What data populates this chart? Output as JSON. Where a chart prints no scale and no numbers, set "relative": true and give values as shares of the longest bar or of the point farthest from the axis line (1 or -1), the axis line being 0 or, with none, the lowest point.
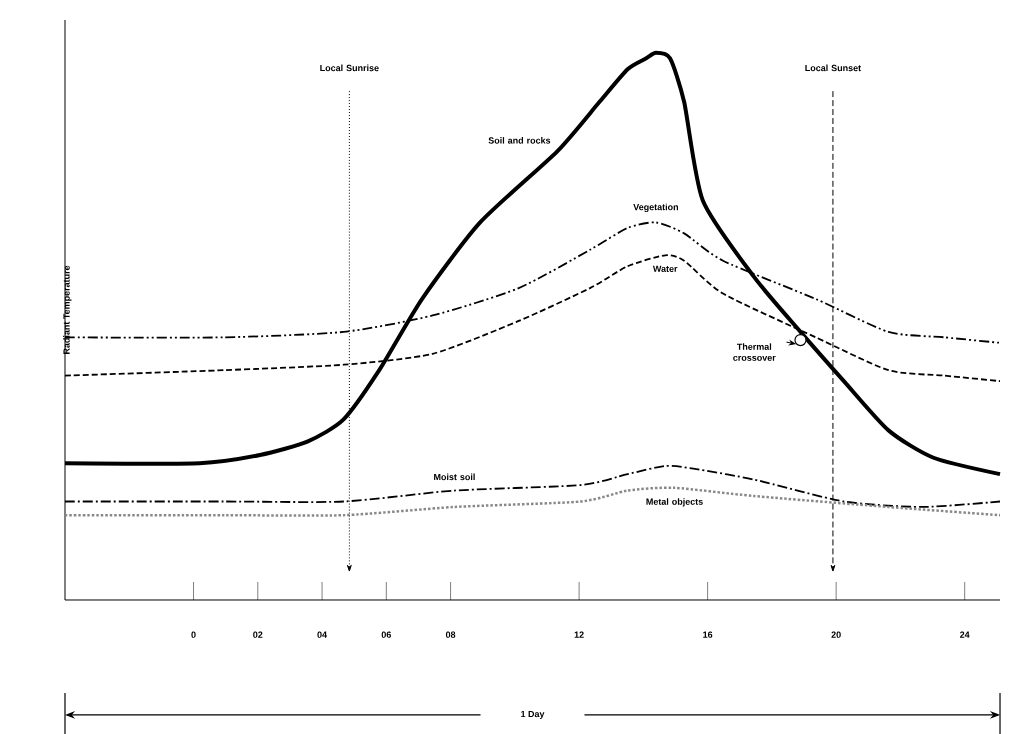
{
  "chart_data": {
    "type": "line",
    "relative": true,
    "ylabel": "Radiant Temperature",
    "xlim": [
      -4,
      25.1
    ],
    "xticks": [
      {
        "value": 0,
        "label": "0"
      },
      {
        "value": 2,
        "label": "02"
      },
      {
        "value": 4,
        "label": "04"
      },
      {
        "value": 6,
        "label": "06"
      },
      {
        "value": 8,
        "label": "08"
      },
      {
        "value": 12,
        "label": "12"
      },
      {
        "value": 16,
        "label": "16"
      },
      {
        "value": 20,
        "label": "20"
      },
      {
        "value": 24,
        "label": "24"
      }
    ],
    "grid": false,
    "series": [
      {
        "name": "Soil and rocks",
        "color": "#000000",
        "line_style": "solid",
        "x": [
          -4,
          0.19,
          2.07,
          3.56,
          4.67,
          5.78,
          7.11,
          8.92,
          11.32,
          12.63,
          13.51,
          14.09,
          14.39,
          14.83,
          15.27,
          15.85,
          17.45,
          18.89,
          20.24,
          21.63,
          23.03,
          25.1
        ],
        "values": [
          0.25,
          0.25,
          0.265,
          0.29,
          0.33,
          0.42,
          0.55,
          0.69,
          0.82,
          0.91,
          0.97,
          0.99,
          1.0,
          0.99,
          0.91,
          0.73,
          0.59,
          0.49,
          0.4,
          0.31,
          0.26,
          0.23
        ]
      },
      {
        "name": "Vegetation",
        "color": "#000000",
        "line_style": "dashdotdot",
        "x": [
          -4,
          0.94,
          4.67,
          7.44,
          10.12,
          12.34,
          13.51,
          14.39,
          15.27,
          16.48,
          19.37,
          21.63,
          23.37,
          25.1
        ],
        "values": [
          0.48,
          0.48,
          0.49,
          0.52,
          0.57,
          0.64,
          0.68,
          0.69,
          0.67,
          0.62,
          0.55,
          0.49,
          0.48,
          0.47
        ]
      },
      {
        "name": "Water",
        "color": "#000000",
        "line_style": "dashed",
        "x": [
          -4,
          0.94,
          4.67,
          7.44,
          10.12,
          12.34,
          13.51,
          14.68,
          15.27,
          16.48,
          19.37,
          21.63,
          23.37,
          25.1
        ],
        "values": [
          0.41,
          0.42,
          0.43,
          0.45,
          0.51,
          0.57,
          0.61,
          0.63,
          0.62,
          0.56,
          0.48,
          0.42,
          0.41,
          0.4
        ]
      },
      {
        "name": "Moist soil",
        "color": "#000000",
        "line_style": "dashdot",
        "x": [
          -4,
          0.94,
          4.67,
          8.12,
          12.04,
          13.51,
          14.68,
          15.56,
          17.45,
          20.24,
          22.68,
          25.1
        ],
        "values": [
          0.18,
          0.18,
          0.18,
          0.2,
          0.21,
          0.23,
          0.245,
          0.24,
          0.22,
          0.18,
          0.17,
          0.18
        ]
      },
      {
        "name": "Metal objects",
        "color": "#888888",
        "line_style": "dotted",
        "x": [
          -4,
          0.94,
          4.67,
          8.12,
          12.04,
          13.51,
          14.97,
          17.45,
          21.63,
          25.1
        ],
        "values": [
          0.155,
          0.155,
          0.155,
          0.17,
          0.18,
          0.2,
          0.205,
          0.19,
          0.17,
          0.155
        ]
      }
    ],
    "ref_lines": [
      {
        "axis": "x",
        "value": 4.85,
        "label": "Local Sunrise",
        "line_style": "dotted"
      },
      {
        "axis": "x",
        "value": 19.9,
        "label": "Local Sunset",
        "line_style": "dashed"
      }
    ],
    "annotations": [
      {
        "text": "Thermal crossover",
        "x": 18.89,
        "y": 0.475
      },
      "1 Day"
    ]
  }
}
